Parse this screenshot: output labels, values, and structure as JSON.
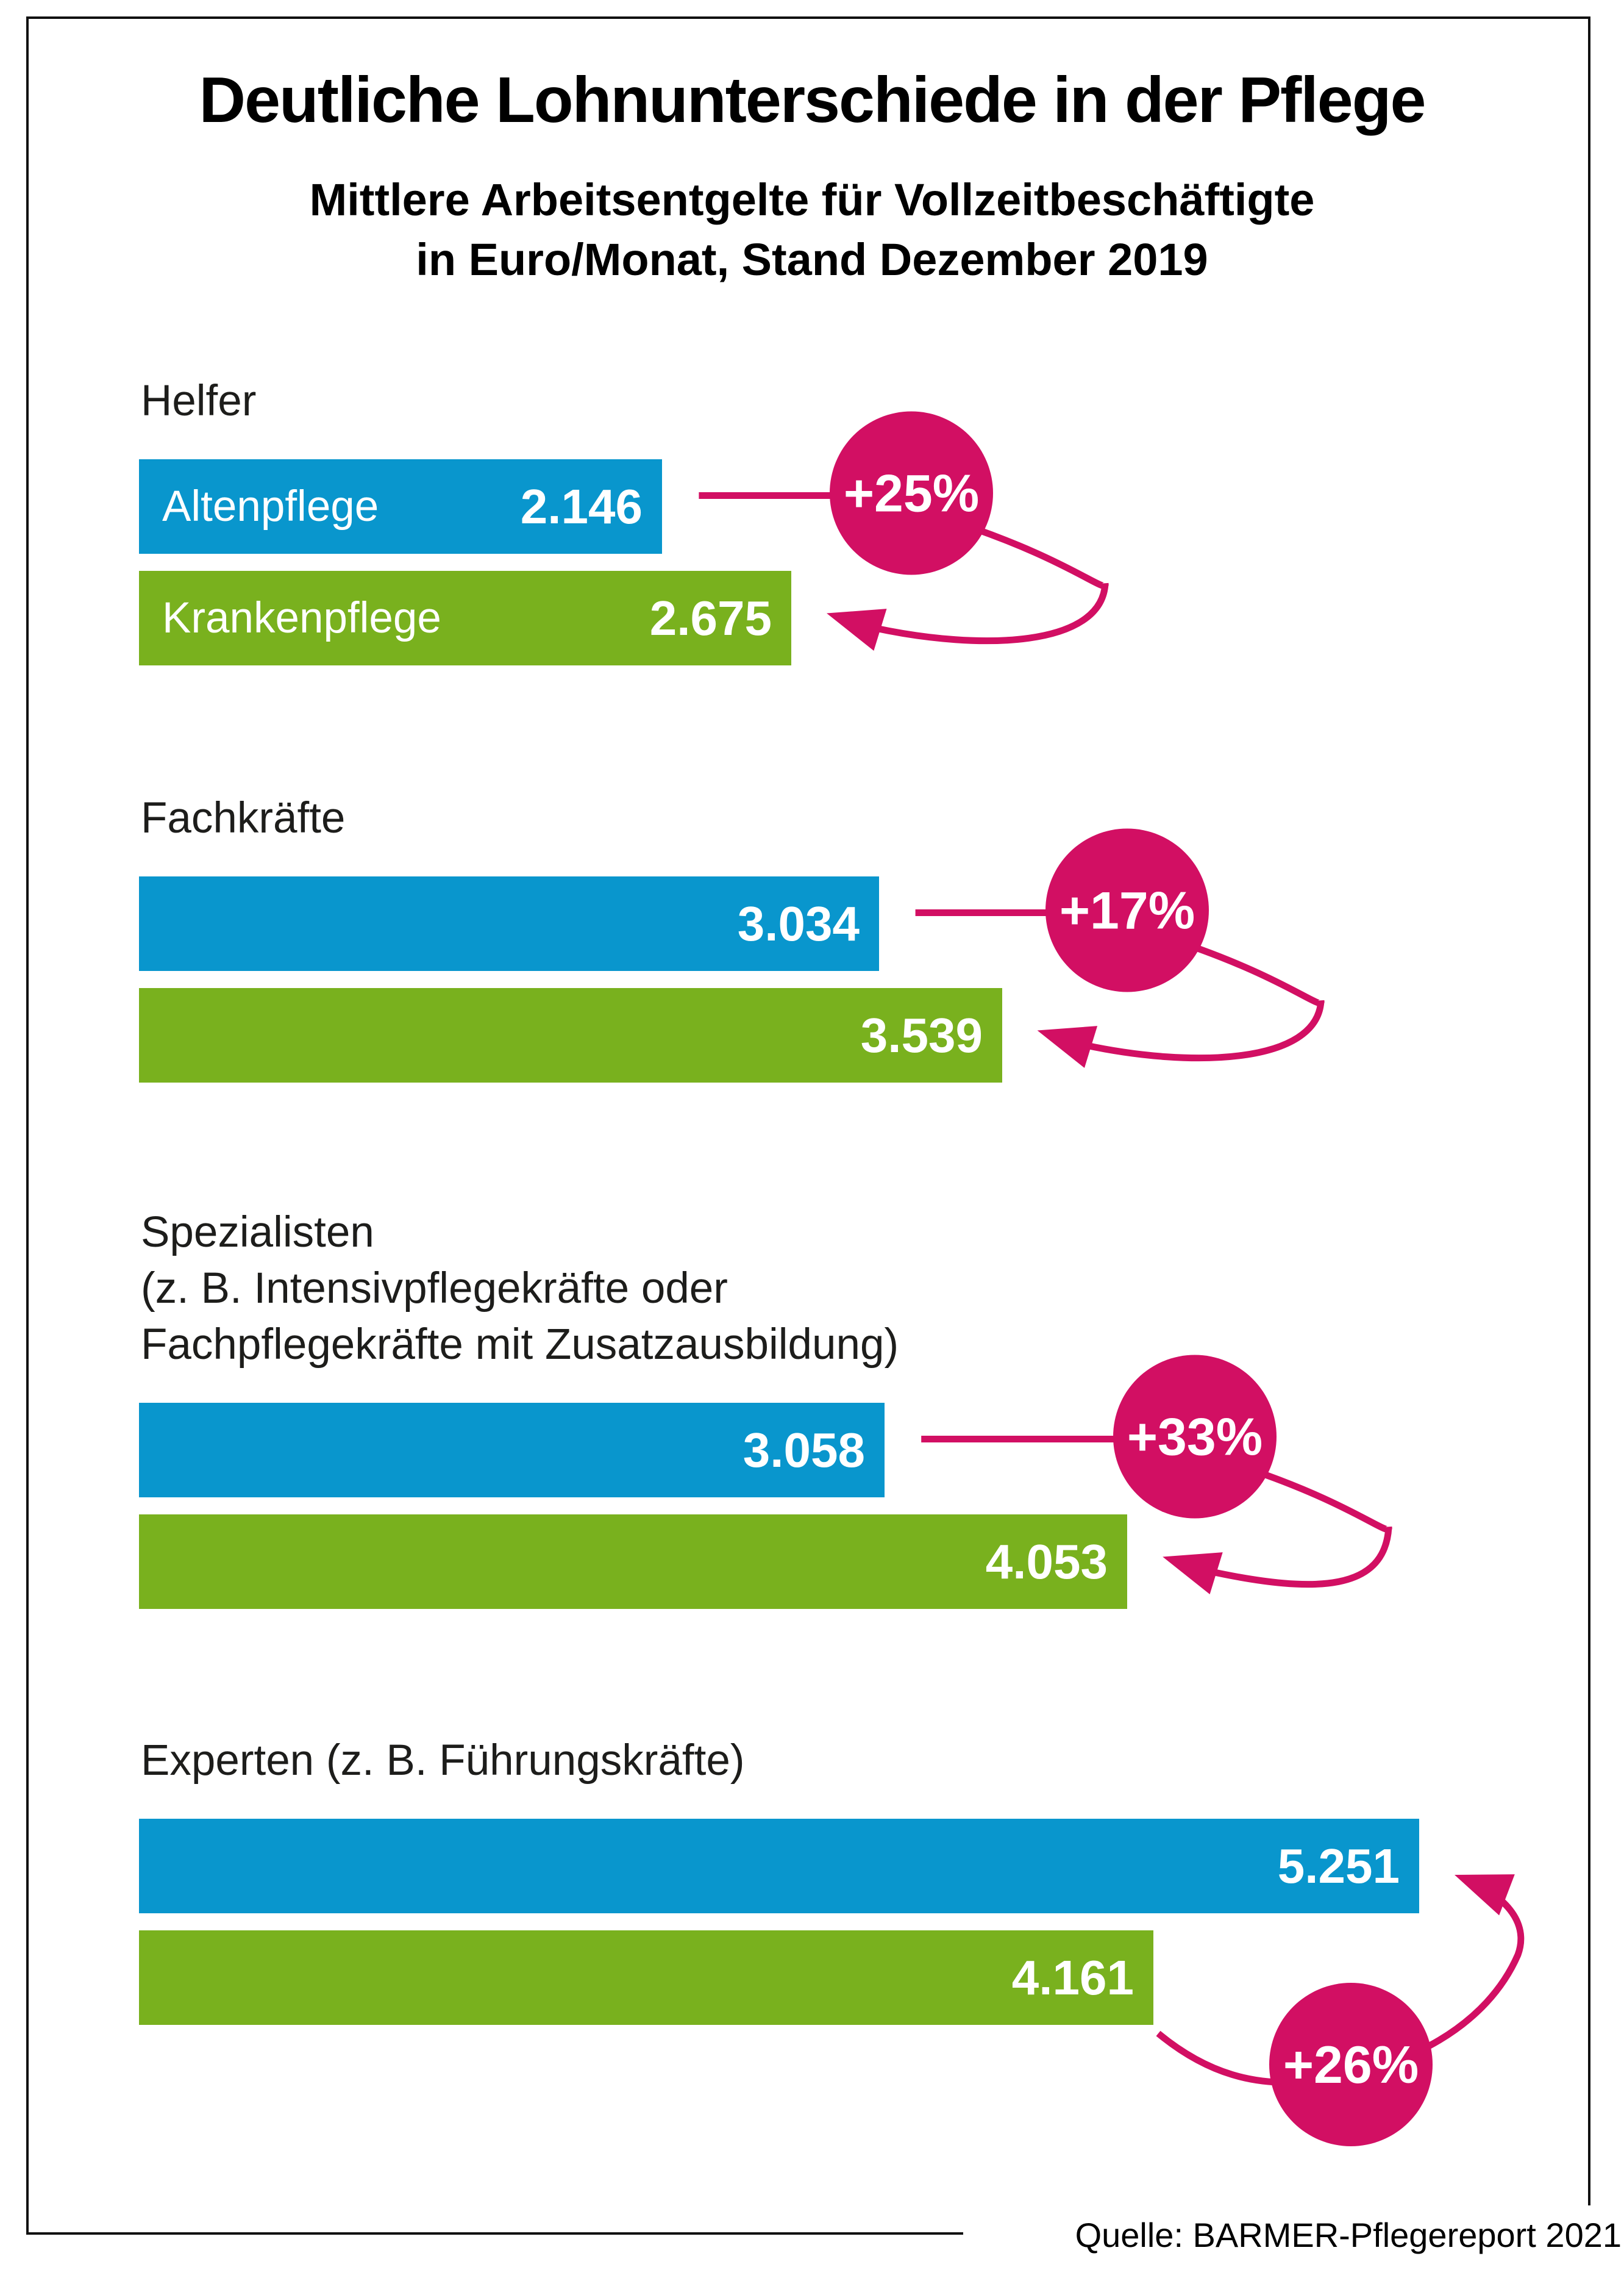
{
  "header": {
    "title": "Deutliche Lohnunterschiede in der Pflege",
    "subtitle_line1": "Mittlere Arbeitsentgelte für Vollzeitbeschäftigte",
    "subtitle_line2": "in Euro/Monat, Stand Dezember 2019"
  },
  "footer": {
    "source": "Quelle: BARMER-Pflegereport 2021"
  },
  "colors": {
    "altenpflege_blue": "#0996cd",
    "krankenpflege_green": "#79b11e",
    "difference_pink": "#d20f63",
    "label_black": "#1d1d1b"
  },
  "chart_data": {
    "type": "bar",
    "orientation": "horizontal",
    "unit": "Euro/Monat",
    "value_axis_visible": false,
    "xlim": [
      0,
      5251
    ],
    "series": [
      "Altenpflege",
      "Krankenpflege"
    ],
    "groups": [
      {
        "label_lines": [
          "Helfer"
        ],
        "bars": [
          {
            "series": "Altenpflege",
            "value": 2146,
            "display": "2.146",
            "label_in_bar": "Altenpflege"
          },
          {
            "series": "Krankenpflege",
            "value": 2675,
            "display": "2.675",
            "label_in_bar": "Krankenpflege"
          }
        ],
        "difference": "+25%",
        "arrow": "from-altenpflege-to-krankenpflege"
      },
      {
        "label_lines": [
          "Fachkräfte"
        ],
        "bars": [
          {
            "series": "Altenpflege",
            "value": 3034,
            "display": "3.034",
            "label_in_bar": null
          },
          {
            "series": "Krankenpflege",
            "value": 3539,
            "display": "3.539",
            "label_in_bar": null
          }
        ],
        "difference": "+17%",
        "arrow": "from-altenpflege-to-krankenpflege"
      },
      {
        "label_lines": [
          "Spezialisten",
          "(z. B. Intensivpflegekräfte oder",
          "Fachpflegekräfte mit Zusatzausbildung)"
        ],
        "bars": [
          {
            "series": "Altenpflege",
            "value": 3058,
            "display": "3.058",
            "label_in_bar": null
          },
          {
            "series": "Krankenpflege",
            "value": 4053,
            "display": "4.053",
            "label_in_bar": null
          }
        ],
        "difference": "+33%",
        "arrow": "from-altenpflege-to-krankenpflege"
      },
      {
        "label_lines": [
          "Experten (z. B. Führungskräfte)"
        ],
        "bars": [
          {
            "series": "Altenpflege",
            "value": 5251,
            "display": "5.251",
            "label_in_bar": null
          },
          {
            "series": "Krankenpflege",
            "value": 4161,
            "display": "4.161",
            "label_in_bar": null
          }
        ],
        "difference": "+26%",
        "arrow": "from-krankenpflege-to-altenpflege"
      }
    ]
  }
}
